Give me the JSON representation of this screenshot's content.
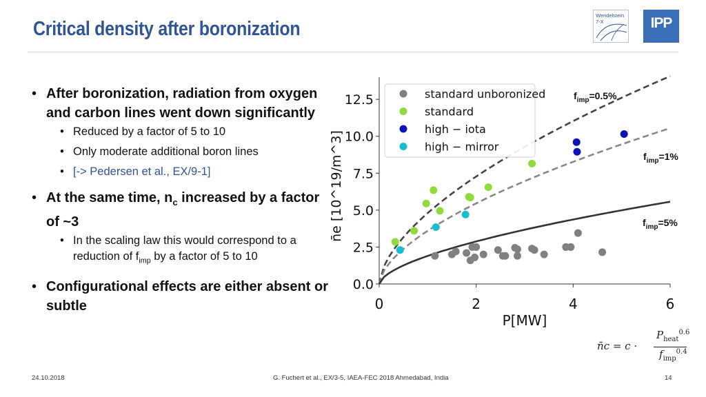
{
  "slide": {
    "title": "Critical density after boronization",
    "logos": {
      "w7x_text_1": "Wendelstein",
      "w7x_text_2": "7-X",
      "ipp": "IPP"
    }
  },
  "bullets": {
    "b1_text": "After boronization, radiation from oxygen and carbon lines went down significantly",
    "b1_sub1": "Reduced by a factor of 5 to 10",
    "b1_sub2": "Only moderate additional boron lines",
    "b1_sub3": "[-> Pedersen et al., EX/9-1]",
    "b2_pre": "At the same time, n",
    "b2_sub": "c",
    "b2_post": " increased by a factor of ~3",
    "b2_sub1_pre": "In the scaling law this would correspond to a reduction of f",
    "b2_sub1_sub": "imp",
    "b2_sub1_post": " by a factor of 5 to 10",
    "b3_text": "Configurational effects are either absent or subtle"
  },
  "formula": {
    "lhs": "n̄c = c ·",
    "numerator": "P",
    "num_sub": "heat",
    "num_sup": "0.6",
    "denominator": "f",
    "den_sub": "imp",
    "den_sup": "0.4"
  },
  "footer": {
    "date": "24.10.2018",
    "citation": "G. Fuchert et al., EX/3-5, IAEA-FEC 2018 Ahmedabad, India",
    "page": "14"
  },
  "colors": {
    "title": "#2f5597",
    "unboronized": "#808080",
    "standard": "#8fdb3c",
    "high_iota": "#0a14b4",
    "high_mirror": "#17becf"
  },
  "chart_data": {
    "type": "scatter",
    "title": "",
    "xlabel": "P[MW]",
    "ylabel": "n̄e [10^19/m^3]",
    "xlim": [
      0,
      6
    ],
    "ylim": [
      0,
      14
    ],
    "xticks": [
      0,
      2,
      4,
      6
    ],
    "yticks": [
      0.0,
      2.5,
      5.0,
      7.5,
      10.0,
      12.5
    ],
    "legend_position": "top-left",
    "series": [
      {
        "name": "standard unboronized",
        "color": "#808080",
        "points": [
          [
            1.15,
            1.9
          ],
          [
            1.5,
            2.0
          ],
          [
            1.58,
            2.2
          ],
          [
            1.8,
            2.1
          ],
          [
            1.88,
            1.6
          ],
          [
            1.92,
            2.5
          ],
          [
            1.97,
            1.8
          ],
          [
            2.0,
            2.5
          ],
          [
            2.15,
            2.0
          ],
          [
            2.45,
            2.3
          ],
          [
            2.55,
            1.9
          ],
          [
            2.6,
            1.9
          ],
          [
            2.8,
            2.45
          ],
          [
            2.85,
            2.35
          ],
          [
            2.85,
            1.9
          ],
          [
            3.15,
            2.4
          ],
          [
            3.2,
            2.3
          ],
          [
            3.4,
            2.0
          ],
          [
            3.85,
            2.5
          ],
          [
            3.95,
            2.5
          ],
          [
            4.1,
            3.45
          ],
          [
            4.6,
            2.15
          ]
        ]
      },
      {
        "name": "standard",
        "color": "#8fdb3c",
        "points": [
          [
            0.33,
            2.85
          ],
          [
            0.72,
            3.6
          ],
          [
            0.97,
            5.45
          ],
          [
            1.12,
            6.35
          ],
          [
            1.25,
            4.95
          ],
          [
            1.85,
            5.9
          ],
          [
            1.88,
            5.85
          ],
          [
            2.25,
            6.55
          ],
          [
            3.15,
            8.15
          ]
        ]
      },
      {
        "name": "high − iota",
        "color": "#0a14b4",
        "points": [
          [
            4.07,
            9.6
          ],
          [
            4.08,
            8.95
          ],
          [
            5.05,
            10.15
          ]
        ]
      },
      {
        "name": "high − mirror",
        "color": "#17becf",
        "points": [
          [
            0.43,
            2.3
          ],
          [
            1.17,
            3.85
          ],
          [
            1.78,
            4.7
          ]
        ]
      }
    ],
    "scaling_curves": [
      {
        "label": "fimp=0.5%",
        "style": "dashed",
        "color": "#444444",
        "coefficient": 4.8
      },
      {
        "label": "fimp=1%",
        "style": "dashed",
        "color": "#888888",
        "coefficient": 3.6
      },
      {
        "label": "fimp=5%",
        "style": "solid",
        "color": "#333333",
        "coefficient": 1.9
      }
    ],
    "curve_exponent": 0.6,
    "annotations": [
      {
        "base": "f",
        "sub": "imp",
        "value": "=0.5%"
      },
      {
        "base": "f",
        "sub": "imp",
        "value": "=1%"
      },
      {
        "base": "f",
        "sub": "imp",
        "value": "=5%"
      }
    ]
  }
}
